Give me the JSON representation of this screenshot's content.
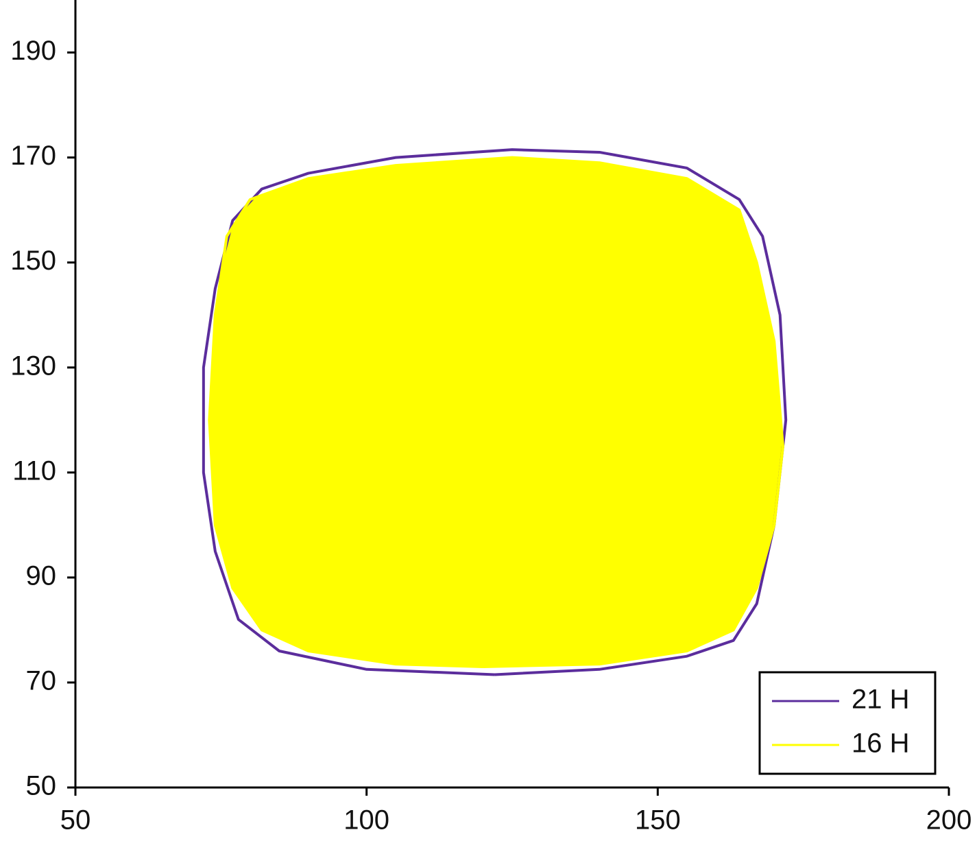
{
  "chart_data": {
    "type": "line",
    "xlim": [
      50,
      200
    ],
    "xticks": [
      50,
      100,
      150,
      200
    ],
    "ylim": [
      50,
      200
    ],
    "yticks": [
      50,
      70,
      90,
      110,
      130,
      150,
      170,
      190
    ],
    "legend": "lower right",
    "series": [
      {
        "name": "21 H",
        "color": "#5b2d9c",
        "fill": false,
        "x": [
          122,
          140,
          155,
          163,
          167,
          170,
          172,
          171,
          168,
          164,
          155,
          140,
          125,
          105,
          90,
          82,
          77,
          74,
          72,
          72,
          74,
          78,
          85,
          100,
          122
        ],
        "y": [
          71.5,
          72.5,
          75,
          78,
          85,
          100,
          120,
          140,
          155,
          162,
          168,
          171,
          171.5,
          170,
          167,
          164,
          158,
          145,
          130,
          110,
          95,
          82,
          76,
          72.5,
          71.5
        ]
      },
      {
        "name": "16 H",
        "color": "#ffff00",
        "fill": true,
        "x": [
          120,
          140,
          155,
          163,
          167,
          170,
          171.5,
          170,
          167,
          164,
          155,
          140,
          125,
          105,
          90,
          80,
          76,
          74,
          73,
          74,
          77,
          82,
          90,
          105,
          120
        ],
        "y": [
          73,
          73.5,
          76,
          80,
          88,
          100,
          115,
          135,
          150,
          160,
          166,
          169,
          170,
          168.5,
          166,
          162,
          155,
          140,
          120,
          100,
          88,
          80,
          76,
          73.5,
          73
        ]
      }
    ]
  }
}
